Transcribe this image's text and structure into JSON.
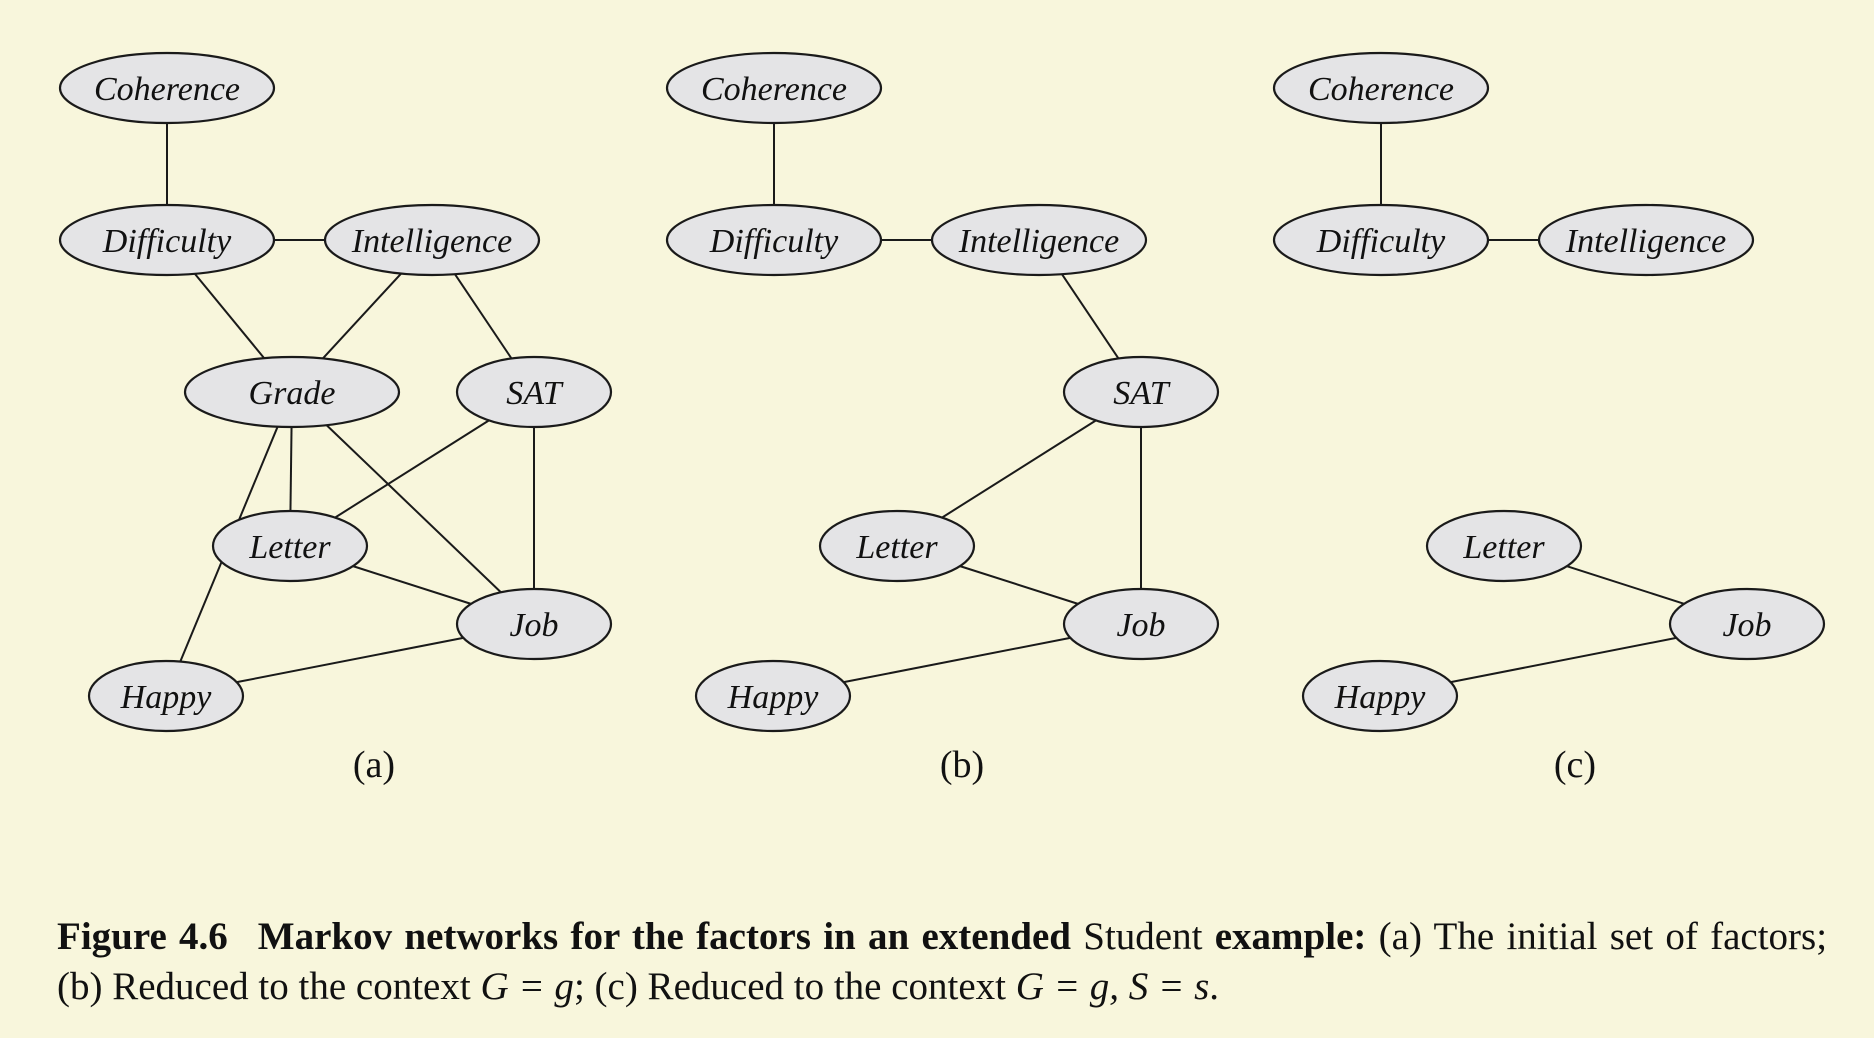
{
  "panels": [
    {
      "id": "a",
      "label": "(a)",
      "nodes": [
        "Coherence",
        "Difficulty",
        "Intelligence",
        "Grade",
        "SAT",
        "Letter",
        "Job",
        "Happy"
      ],
      "edges": [
        [
          "Coherence",
          "Difficulty"
        ],
        [
          "Difficulty",
          "Intelligence"
        ],
        [
          "Difficulty",
          "Grade"
        ],
        [
          "Intelligence",
          "Grade"
        ],
        [
          "Intelligence",
          "SAT"
        ],
        [
          "Grade",
          "Letter"
        ],
        [
          "Grade",
          "Job"
        ],
        [
          "Grade",
          "Happy"
        ],
        [
          "SAT",
          "Letter"
        ],
        [
          "SAT",
          "Job"
        ],
        [
          "Letter",
          "Job"
        ],
        [
          "Job",
          "Happy"
        ]
      ]
    },
    {
      "id": "b",
      "label": "(b)",
      "nodes": [
        "Coherence",
        "Difficulty",
        "Intelligence",
        "SAT",
        "Letter",
        "Job",
        "Happy"
      ],
      "edges": [
        [
          "Coherence",
          "Difficulty"
        ],
        [
          "Difficulty",
          "Intelligence"
        ],
        [
          "Intelligence",
          "SAT"
        ],
        [
          "SAT",
          "Letter"
        ],
        [
          "SAT",
          "Job"
        ],
        [
          "Letter",
          "Job"
        ],
        [
          "Job",
          "Happy"
        ]
      ]
    },
    {
      "id": "c",
      "label": "(c)",
      "nodes": [
        "Coherence",
        "Difficulty",
        "Intelligence",
        "Letter",
        "Job",
        "Happy"
      ],
      "edges": [
        [
          "Coherence",
          "Difficulty"
        ],
        [
          "Difficulty",
          "Intelligence"
        ],
        [
          "Letter",
          "Job"
        ],
        [
          "Job",
          "Happy"
        ]
      ]
    }
  ],
  "caption": {
    "label": "Figure 4.6",
    "title_part1": "Markov networks for the factors in an extended",
    "title_emph": "Student",
    "title_part2": "example:",
    "text_part1": "(a) The initial set of factors; (b) Reduced to the context",
    "math1": "G = g",
    "text_part2": "; (c) Reduced to the context",
    "math2": "G = g, S = s",
    "text_part3": "."
  }
}
